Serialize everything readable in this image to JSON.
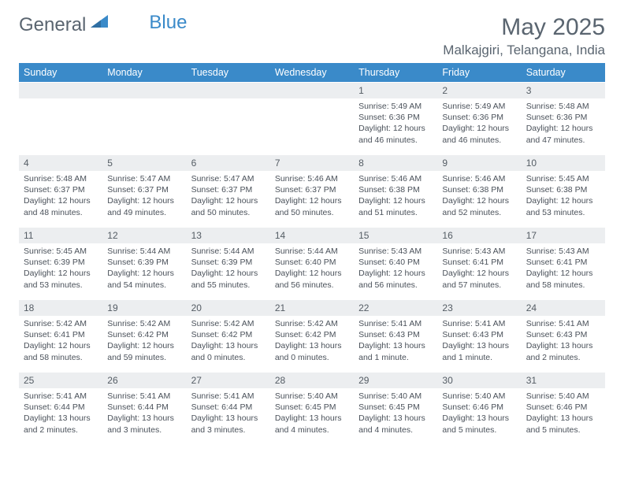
{
  "logo": {
    "text1": "General",
    "text2": "Blue"
  },
  "title": "May 2025",
  "location": "Malkajgiri, Telangana, India",
  "header_bg": "#3a8ac9",
  "daynum_bg": "#eceef0",
  "text_color": "#5a6570",
  "days_of_week": [
    "Sunday",
    "Monday",
    "Tuesday",
    "Wednesday",
    "Thursday",
    "Friday",
    "Saturday"
  ],
  "weeks": [
    [
      null,
      null,
      null,
      null,
      {
        "n": "1",
        "sr": "5:49 AM",
        "ss": "6:36 PM",
        "dl": "12 hours and 46 minutes."
      },
      {
        "n": "2",
        "sr": "5:49 AM",
        "ss": "6:36 PM",
        "dl": "12 hours and 46 minutes."
      },
      {
        "n": "3",
        "sr": "5:48 AM",
        "ss": "6:36 PM",
        "dl": "12 hours and 47 minutes."
      }
    ],
    [
      {
        "n": "4",
        "sr": "5:48 AM",
        "ss": "6:37 PM",
        "dl": "12 hours and 48 minutes."
      },
      {
        "n": "5",
        "sr": "5:47 AM",
        "ss": "6:37 PM",
        "dl": "12 hours and 49 minutes."
      },
      {
        "n": "6",
        "sr": "5:47 AM",
        "ss": "6:37 PM",
        "dl": "12 hours and 50 minutes."
      },
      {
        "n": "7",
        "sr": "5:46 AM",
        "ss": "6:37 PM",
        "dl": "12 hours and 50 minutes."
      },
      {
        "n": "8",
        "sr": "5:46 AM",
        "ss": "6:38 PM",
        "dl": "12 hours and 51 minutes."
      },
      {
        "n": "9",
        "sr": "5:46 AM",
        "ss": "6:38 PM",
        "dl": "12 hours and 52 minutes."
      },
      {
        "n": "10",
        "sr": "5:45 AM",
        "ss": "6:38 PM",
        "dl": "12 hours and 53 minutes."
      }
    ],
    [
      {
        "n": "11",
        "sr": "5:45 AM",
        "ss": "6:39 PM",
        "dl": "12 hours and 53 minutes."
      },
      {
        "n": "12",
        "sr": "5:44 AM",
        "ss": "6:39 PM",
        "dl": "12 hours and 54 minutes."
      },
      {
        "n": "13",
        "sr": "5:44 AM",
        "ss": "6:39 PM",
        "dl": "12 hours and 55 minutes."
      },
      {
        "n": "14",
        "sr": "5:44 AM",
        "ss": "6:40 PM",
        "dl": "12 hours and 56 minutes."
      },
      {
        "n": "15",
        "sr": "5:43 AM",
        "ss": "6:40 PM",
        "dl": "12 hours and 56 minutes."
      },
      {
        "n": "16",
        "sr": "5:43 AM",
        "ss": "6:41 PM",
        "dl": "12 hours and 57 minutes."
      },
      {
        "n": "17",
        "sr": "5:43 AM",
        "ss": "6:41 PM",
        "dl": "12 hours and 58 minutes."
      }
    ],
    [
      {
        "n": "18",
        "sr": "5:42 AM",
        "ss": "6:41 PM",
        "dl": "12 hours and 58 minutes."
      },
      {
        "n": "19",
        "sr": "5:42 AM",
        "ss": "6:42 PM",
        "dl": "12 hours and 59 minutes."
      },
      {
        "n": "20",
        "sr": "5:42 AM",
        "ss": "6:42 PM",
        "dl": "13 hours and 0 minutes."
      },
      {
        "n": "21",
        "sr": "5:42 AM",
        "ss": "6:42 PM",
        "dl": "13 hours and 0 minutes."
      },
      {
        "n": "22",
        "sr": "5:41 AM",
        "ss": "6:43 PM",
        "dl": "13 hours and 1 minute."
      },
      {
        "n": "23",
        "sr": "5:41 AM",
        "ss": "6:43 PM",
        "dl": "13 hours and 1 minute."
      },
      {
        "n": "24",
        "sr": "5:41 AM",
        "ss": "6:43 PM",
        "dl": "13 hours and 2 minutes."
      }
    ],
    [
      {
        "n": "25",
        "sr": "5:41 AM",
        "ss": "6:44 PM",
        "dl": "13 hours and 2 minutes."
      },
      {
        "n": "26",
        "sr": "5:41 AM",
        "ss": "6:44 PM",
        "dl": "13 hours and 3 minutes."
      },
      {
        "n": "27",
        "sr": "5:41 AM",
        "ss": "6:44 PM",
        "dl": "13 hours and 3 minutes."
      },
      {
        "n": "28",
        "sr": "5:40 AM",
        "ss": "6:45 PM",
        "dl": "13 hours and 4 minutes."
      },
      {
        "n": "29",
        "sr": "5:40 AM",
        "ss": "6:45 PM",
        "dl": "13 hours and 4 minutes."
      },
      {
        "n": "30",
        "sr": "5:40 AM",
        "ss": "6:46 PM",
        "dl": "13 hours and 5 minutes."
      },
      {
        "n": "31",
        "sr": "5:40 AM",
        "ss": "6:46 PM",
        "dl": "13 hours and 5 minutes."
      }
    ]
  ],
  "labels": {
    "sunrise": "Sunrise:",
    "sunset": "Sunset:",
    "daylight": "Daylight:"
  }
}
